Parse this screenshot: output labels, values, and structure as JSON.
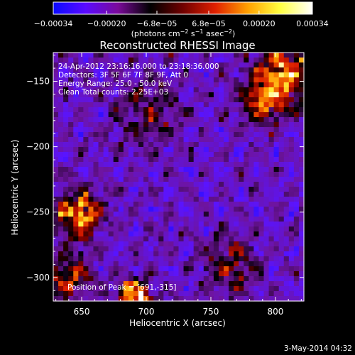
{
  "chart_data": {
    "type": "heatmap",
    "title": "Reconstructed RHESSI Image",
    "xlabel": "Heliocentric X (arcsec)",
    "ylabel": "Heliocentric Y (arcsec)",
    "xlim": [
      628,
      822
    ],
    "ylim": [
      -318,
      -128
    ],
    "xticks": [
      650,
      700,
      750,
      800
    ],
    "xtick_labels": [
      "650",
      "700",
      "750",
      "800"
    ],
    "yticks": [
      -150,
      -200,
      -250,
      -300
    ],
    "ytick_labels": [
      "−150",
      "−200",
      "−250",
      "−300"
    ],
    "colorbar": {
      "min": -0.00034,
      "max": 0.00034,
      "ticks": [
        -0.00034,
        -0.0002,
        -6.8e-05,
        6.8e-05,
        0.0002,
        0.00034
      ],
      "tick_labels": [
        "−0.00034",
        "−0.00020",
        "−6.8e−05",
        "6.8e−05",
        "0.00020",
        "0.00034"
      ],
      "units_main": "(photons cm",
      "units_exp1": "−2",
      "units_mid": " s",
      "units_exp2": "−1",
      "units_end": " asec",
      "units_exp3": "−2",
      "units_close": ")",
      "colors": [
        "#0a0aff",
        "#5a0aff",
        "#7a0a9a",
        "#000000",
        "#700000",
        "#e02000",
        "#ffa000",
        "#ffff40",
        "#ffffff"
      ]
    },
    "annotations": [
      "24-Apr-2012 23:16:16.000 to 23:18:36.000",
      "Detectors: 3F 5F 6F 7F 8F 9F, Att 0",
      "Energy Range: 25.0 - 50.0 keV",
      "Clean     Total counts: 2.25E+03"
    ],
    "peak_label": "Position of Peak = [691,-315]",
    "peak_position": [
      691,
      -315
    ],
    "hot_regions": [
      {
        "x": 691,
        "y": -315,
        "sigma": 9,
        "amp": 1.6
      },
      {
        "x": 648,
        "y": -252,
        "sigma": 12,
        "amp": 1.3
      },
      {
        "x": 808,
        "y": -143,
        "sigma": 16,
        "amp": 1.2
      },
      {
        "x": 790,
        "y": -165,
        "sigma": 12,
        "amp": 0.9
      },
      {
        "x": 765,
        "y": -290,
        "sigma": 14,
        "amp": 0.7
      },
      {
        "x": 640,
        "y": -300,
        "sigma": 12,
        "amp": 0.8
      },
      {
        "x": 700,
        "y": -175,
        "sigma": 18,
        "amp": 0.5
      }
    ],
    "grid": false
  },
  "footer": {
    "timestamp": "3-May-2014 04:32"
  }
}
